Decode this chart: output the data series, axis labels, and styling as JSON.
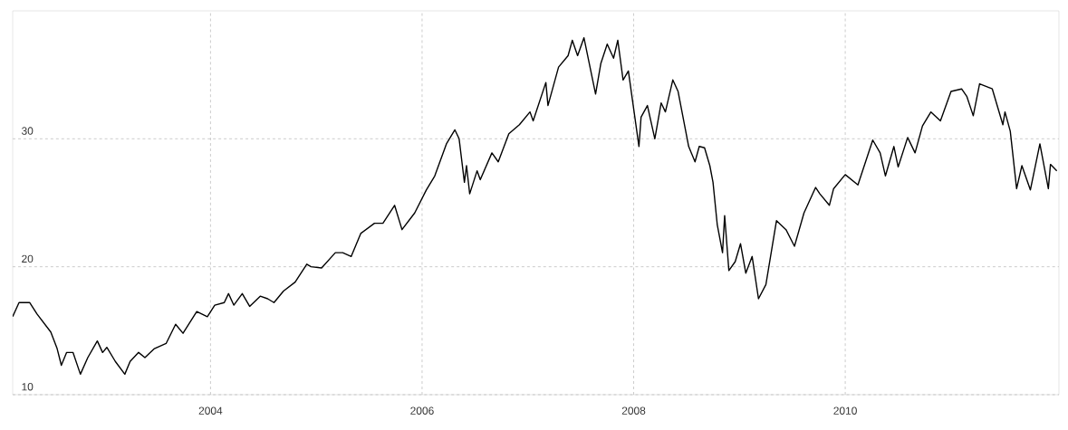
{
  "chart_data": {
    "type": "line",
    "xlim": [
      2002.13,
      2012.02
    ],
    "ylim": [
      10,
      40
    ],
    "xticks": [
      2004,
      2006,
      2008,
      2010
    ],
    "yticks": [
      10,
      20,
      30
    ],
    "grid": true,
    "line_style": "solid",
    "marker": "none",
    "series": [
      {
        "color": "#000000",
        "x": [
          2002.13,
          2002.19,
          2002.29,
          2002.36,
          2002.49,
          2002.55,
          2002.59,
          2002.64,
          2002.7,
          2002.77,
          2002.84,
          2002.93,
          2002.98,
          2003.02,
          2003.1,
          2003.19,
          2003.24,
          2003.32,
          2003.38,
          2003.47,
          2003.58,
          2003.67,
          2003.74,
          2003.87,
          2003.97,
          2004.04,
          2004.13,
          2004.17,
          2004.22,
          2004.3,
          2004.37,
          2004.47,
          2004.54,
          2004.6,
          2004.69,
          2004.8,
          2004.91,
          2004.95,
          2005.05,
          2005.18,
          2005.25,
          2005.33,
          2005.42,
          2005.55,
          2005.63,
          2005.74,
          2005.81,
          2005.93,
          2006.04,
          2006.12,
          2006.23,
          2006.31,
          2006.35,
          2006.4,
          2006.42,
          2006.45,
          2006.52,
          2006.55,
          2006.66,
          2006.72,
          2006.82,
          2006.92,
          2007.02,
          2007.05,
          2007.17,
          2007.19,
          2007.29,
          2007.38,
          2007.42,
          2007.47,
          2007.53,
          2007.64,
          2007.69,
          2007.75,
          2007.81,
          2007.85,
          2007.9,
          2007.95,
          2008.05,
          2008.07,
          2008.13,
          2008.2,
          2008.26,
          2008.3,
          2008.37,
          2008.42,
          2008.52,
          2008.58,
          2008.62,
          2008.67,
          2008.72,
          2008.75,
          2008.79,
          2008.84,
          2008.86,
          2008.9,
          2008.96,
          2009.01,
          2009.06,
          2009.12,
          2009.18,
          2009.25,
          2009.35,
          2009.44,
          2009.52,
          2009.61,
          2009.72,
          2009.76,
          2009.85,
          2009.89,
          2010.0,
          2010.12,
          2010.26,
          2010.33,
          2010.38,
          2010.46,
          2010.5,
          2010.59,
          2010.66,
          2010.73,
          2010.81,
          2010.9,
          2011.0,
          2011.1,
          2011.15,
          2011.21,
          2011.27,
          2011.39,
          2011.49,
          2011.51,
          2011.56,
          2011.62,
          2011.67,
          2011.75,
          2011.84,
          2011.92,
          2011.94,
          2012.0
        ],
        "values": [
          16.1,
          17.2,
          17.2,
          16.3,
          14.9,
          13.6,
          12.3,
          13.3,
          13.3,
          11.6,
          12.9,
          14.2,
          13.3,
          13.7,
          12.6,
          11.6,
          12.6,
          13.3,
          12.9,
          13.6,
          14.0,
          15.5,
          14.8,
          16.5,
          16.1,
          17.0,
          17.2,
          17.9,
          17.0,
          17.9,
          16.9,
          17.7,
          17.5,
          17.2,
          18.1,
          18.8,
          20.2,
          20.0,
          19.9,
          21.1,
          21.1,
          20.8,
          22.6,
          23.4,
          23.4,
          24.8,
          22.9,
          24.2,
          26.0,
          27.1,
          29.6,
          30.7,
          30.0,
          26.6,
          27.9,
          25.7,
          27.5,
          26.8,
          28.9,
          28.2,
          30.4,
          31.1,
          32.1,
          31.4,
          34.4,
          32.6,
          35.6,
          36.5,
          37.7,
          36.5,
          37.9,
          33.5,
          35.9,
          37.4,
          36.3,
          37.7,
          34.6,
          35.3,
          29.4,
          31.7,
          32.6,
          30.0,
          32.8,
          32.1,
          34.6,
          33.7,
          29.4,
          28.2,
          29.4,
          29.3,
          27.9,
          26.6,
          23.3,
          21.1,
          24.0,
          19.7,
          20.4,
          21.8,
          19.5,
          20.8,
          17.5,
          18.6,
          23.6,
          22.9,
          21.6,
          24.2,
          26.2,
          25.7,
          24.8,
          26.1,
          27.2,
          26.4,
          29.9,
          28.9,
          27.1,
          29.4,
          27.8,
          30.1,
          28.9,
          31.0,
          32.1,
          31.4,
          33.7,
          33.9,
          33.3,
          31.8,
          34.3,
          33.9,
          31.1,
          32.1,
          30.6,
          26.1,
          27.9,
          26.0,
          29.6,
          26.1,
          28.0,
          27.5
        ]
      }
    ]
  }
}
